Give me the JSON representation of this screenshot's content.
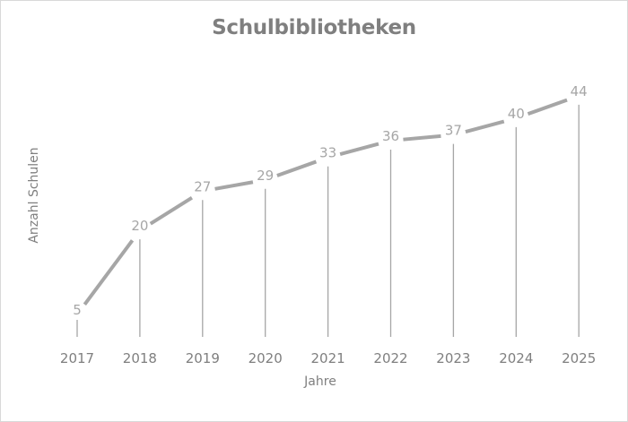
{
  "chart_data": {
    "type": "line",
    "title": "Schulbibliotheken",
    "xlabel": "Jahre",
    "ylabel": "Anzahl Schulen",
    "categories": [
      "2017",
      "2018",
      "2019",
      "2020",
      "2021",
      "2022",
      "2023",
      "2024",
      "2025"
    ],
    "values": [
      5,
      20,
      27,
      29,
      33,
      36,
      37,
      40,
      44
    ],
    "data_labels": true,
    "drop_lines": true,
    "grid": false,
    "legend": "none",
    "colors": {
      "line": "#a6a6a6",
      "drop_line": "#a6a6a6",
      "text": "#7f7f7f",
      "border": "#d9d9d9"
    }
  }
}
